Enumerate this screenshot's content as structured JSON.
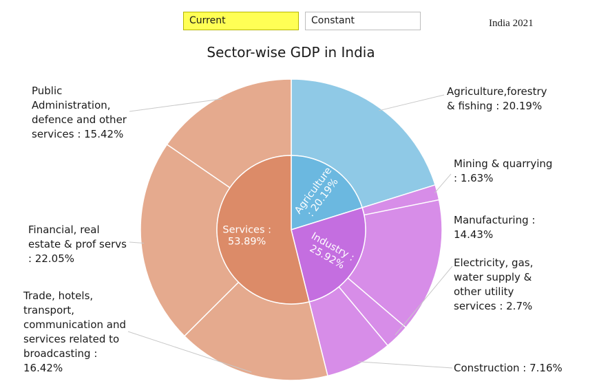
{
  "controls": {
    "current_label": "Current",
    "constant_label": "Constant",
    "active_color": "#ffff55"
  },
  "edition_label": "India 2021",
  "chart_data": {
    "type": "pie",
    "title": "Sector-wise GDP in India",
    "inner_ring": [
      {
        "label": "Agriculture",
        "display": "Agriculture\n: 20.19%",
        "value": 20.19,
        "color": "#6bb8e0"
      },
      {
        "label": "Industry",
        "display": "Industry :\n25.92%",
        "value": 25.92,
        "color": "#c46ee0"
      },
      {
        "label": "Services",
        "display": "Services :\n53.89%",
        "value": 53.89,
        "color": "#dc8b68"
      }
    ],
    "outer_ring": [
      {
        "label": "Agriculture,forestry\n& fishing : 20.19%",
        "value": 20.19,
        "color": "#8fc9e6"
      },
      {
        "label": "Mining & quarrying\n: 1.63%",
        "value": 1.63,
        "color": "#d78de8"
      },
      {
        "label": "Manufacturing :\n14.43%",
        "value": 14.43,
        "color": "#d78de8"
      },
      {
        "label": "Electricity, gas,\nwater supply &\nother utility\nservices : 2.7%",
        "value": 2.7,
        "color": "#d78de8"
      },
      {
        "label": "Construction : 7.16%",
        "value": 7.16,
        "color": "#d78de8"
      },
      {
        "label": "Trade, hotels,\ntransport,\ncommunication and\nservices related to\nbroadcasting :\n16.42%",
        "value": 16.42,
        "color": "#e5aa8e"
      },
      {
        "label": "Financial, real\nestate & prof servs\n: 22.05%",
        "value": 22.05,
        "color": "#e5aa8e"
      },
      {
        "label": "Public\nAdministration,\ndefence and other\nservices : 15.42%",
        "value": 15.42,
        "color": "#e5aa8e"
      }
    ]
  }
}
